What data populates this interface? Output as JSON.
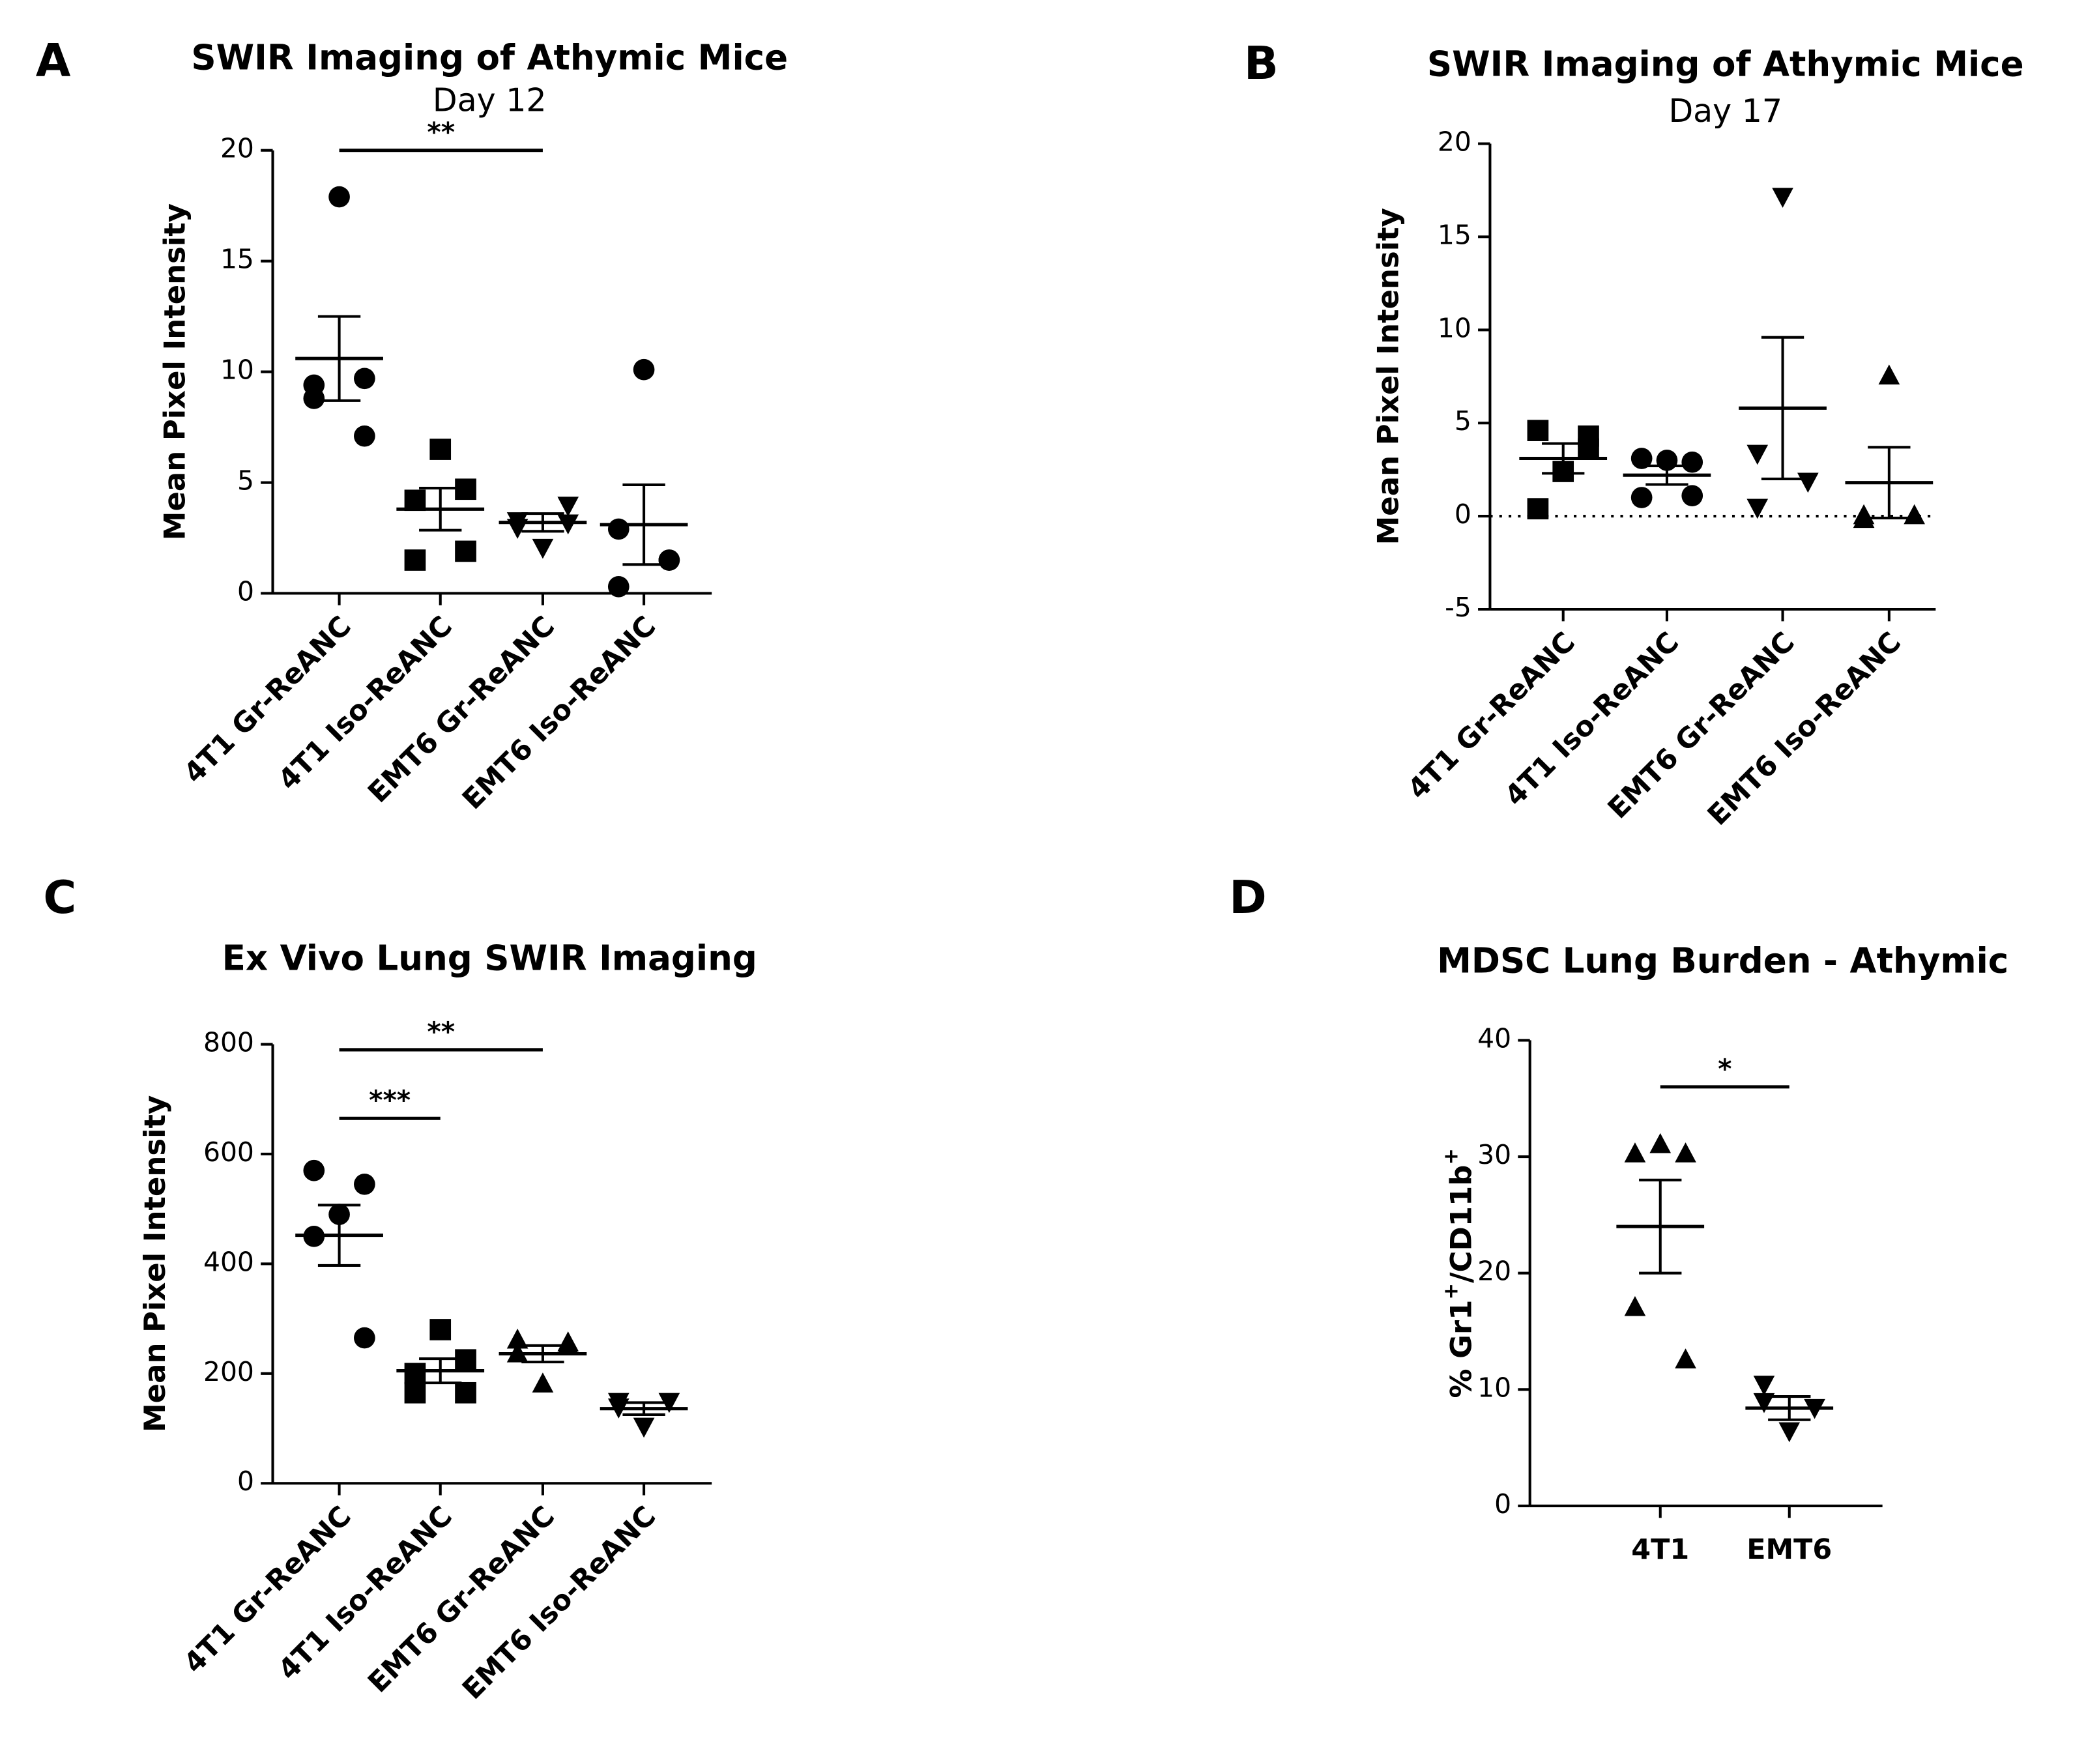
{
  "chart_data": [
    {
      "type": "dotplot",
      "panel": "A",
      "title": "SWIR  Imaging of  Athymic Mice",
      "subtitle": "Day 12",
      "ylabel": [
        {
          "text": "Mean Pixel Intensity"
        }
      ],
      "ylim": [
        0,
        20
      ],
      "yticks": [
        0,
        5,
        10,
        15,
        20
      ],
      "color": "#000000",
      "groups": [
        {
          "name": "4T1 Gr-ReANC",
          "marker": "circle",
          "values": [
            17.9,
            9.4,
            9.7,
            8.8,
            7.1
          ],
          "mean": 10.6,
          "sem": 1.9
        },
        {
          "name": "4T1 Iso-ReANC",
          "marker": "square",
          "values": [
            6.5,
            4.2,
            4.7,
            1.5,
            1.9
          ],
          "mean": 3.8,
          "sem": 0.95
        },
        {
          "name": "EMT6 Gr-ReANC",
          "marker": "triangle-down",
          "values": [
            2.1,
            3.3,
            4.0,
            3.0,
            3.2
          ],
          "mean": 3.2,
          "sem": 0.4
        },
        {
          "name": "EMT6 Iso-ReANC",
          "marker": "circle",
          "values": [
            10.1,
            2.9,
            1.5,
            0.3,
            1.5
          ],
          "mean": 3.1,
          "sem": 1.8
        }
      ],
      "annotations": [
        {
          "label": "**",
          "groups": [
            "4T1 Gr-ReANC",
            "EMT6 Gr-ReANC"
          ],
          "y": 20
        }
      ]
    },
    {
      "type": "dotplot",
      "panel": "B",
      "title": "SWIR  Imaging of  Athymic Mice",
      "subtitle": "Day 17",
      "ylabel": [
        {
          "text": "Mean Pixel Intensity"
        }
      ],
      "ylim": [
        -5,
        20
      ],
      "yticks": [
        -5,
        0,
        5,
        10,
        15,
        20
      ],
      "zero_line": "dotted",
      "color": "#000000",
      "groups": [
        {
          "name": "4T1 Gr-ReANC",
          "marker": "square",
          "values": [
            2.4,
            4.6,
            4.3,
            0.4,
            3.6
          ],
          "mean": 3.1,
          "sem": 0.8
        },
        {
          "name": "4T1 Iso-ReANC",
          "marker": "circle",
          "values": [
            3.0,
            3.1,
            2.9,
            1.0,
            1.1
          ],
          "mean": 2.2,
          "sem": 0.5
        },
        {
          "name": "EMT6 Gr-ReANC",
          "marker": "triangle-down",
          "values": [
            17.2,
            3.4,
            1.9,
            0.5
          ],
          "mean": 5.8,
          "sem": 3.8
        },
        {
          "name": "EMT6 Iso-ReANC",
          "marker": "triangle-up",
          "values": [
            7.5,
            -0.2,
            0,
            0
          ],
          "mean": 1.8,
          "sem": 1.9
        }
      ]
    },
    {
      "type": "dotplot",
      "panel": "C",
      "title": "Ex Vivo Lung SWIR Imaging",
      "ylabel": [
        {
          "text": "Mean Pixel Intensity"
        }
      ],
      "ylim": [
        0,
        800
      ],
      "yticks": [
        0,
        200,
        400,
        600,
        800
      ],
      "color": "#000000",
      "groups": [
        {
          "name": "4T1 Gr-ReANC",
          "marker": "circle",
          "values": [
            490,
            570,
            545,
            450,
            265
          ],
          "mean": 452,
          "sem": 55
        },
        {
          "name": "4T1 Iso-ReANC",
          "marker": "square",
          "values": [
            280,
            200,
            225,
            165,
            165
          ],
          "mean": 205,
          "sem": 22
        },
        {
          "name": "EMT6 Gr-ReANC",
          "marker": "triangle-up",
          "values": [
            180,
            260,
            255,
            235,
            250
          ],
          "mean": 236,
          "sem": 15
        },
        {
          "name": "EMT6 Iso-ReANC",
          "marker": "triangle-down",
          "values": [
            105,
            150,
            150,
            140
          ],
          "mean": 136,
          "sem": 11
        }
      ],
      "annotations": [
        {
          "label": "***",
          "groups": [
            "4T1 Gr-ReANC",
            "4T1 Iso-ReANC"
          ],
          "y": 665
        },
        {
          "label": "**",
          "groups": [
            "4T1 Gr-ReANC",
            "EMT6 Gr-ReANC"
          ],
          "y": 790
        }
      ]
    },
    {
      "type": "dotplot",
      "panel": "D",
      "title": "MDSC Lung Burden -  Athymic",
      "ylabel": [
        {
          "text": "% Gr1"
        },
        {
          "text": "+",
          "sup": true
        },
        {
          "text": "/CD11b"
        },
        {
          "text": "+",
          "sup": true
        }
      ],
      "ylim": [
        0,
        40
      ],
      "yticks": [
        0,
        10,
        20,
        30,
        40
      ],
      "color": "#000000",
      "category_labels": "horizontal",
      "groups": [
        {
          "name": "4T1",
          "marker": "triangle-up",
          "values": [
            31,
            30.2,
            30.2,
            17,
            12.5
          ],
          "mean": 24,
          "sem": 4
        },
        {
          "name": "EMT6",
          "marker": "triangle-down",
          "values": [
            6.5,
            10.5,
            8.5,
            9
          ],
          "mean": 8.4,
          "sem": 1
        }
      ],
      "annotations": [
        {
          "label": "*",
          "groups": [
            "4T1",
            "EMT6"
          ],
          "y": 36
        }
      ]
    }
  ]
}
